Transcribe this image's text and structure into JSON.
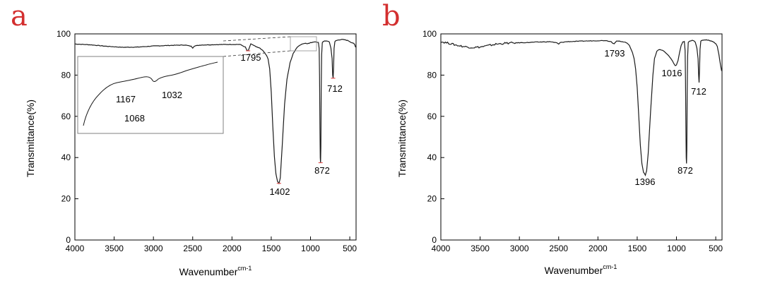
{
  "colors": {
    "panel_letter": "#d32f2f",
    "line": "#1a1a1a",
    "marker": "#e05050",
    "inset_border": "#808080"
  },
  "chart_data": [
    {
      "type": "line",
      "panel_label": "a",
      "xlabel": "Wavenumber",
      "xlabel_superscript": "cm-1",
      "ylabel": "Transmittance(%)",
      "xlim": [
        4000,
        420
      ],
      "ylim": [
        0,
        100
      ],
      "xticks": [
        4000,
        3500,
        3000,
        2500,
        2000,
        1500,
        1000,
        500
      ],
      "yticks": [
        0,
        20,
        40,
        60,
        80,
        100
      ],
      "grid": false,
      "series": [
        {
          "x": [
            4000,
            3800,
            3600,
            3400,
            3200,
            3000,
            2800,
            2600,
            2520,
            2500,
            2480,
            2400,
            2200,
            2000,
            1900,
            1830,
            1810,
            1795,
            1780,
            1760,
            1720,
            1680,
            1640,
            1600,
            1560,
            1540,
            1520,
            1500,
            1480,
            1460,
            1440,
            1420,
            1402,
            1385,
            1360,
            1330,
            1300,
            1260,
            1220,
            1180,
            1140,
            1100,
            1060,
            1040,
            1020,
            1000,
            960,
            930,
            900,
            890,
            885,
            880,
            876,
            872,
            868,
            864,
            858,
            850,
            840,
            820,
            800,
            780,
            760,
            740,
            725,
            718,
            712,
            706,
            700,
            690,
            680,
            660,
            640,
            620,
            600,
            580,
            560,
            540,
            520,
            500,
            480,
            460,
            440,
            425
          ],
          "y": [
            95.1,
            94.7,
            94.0,
            93.5,
            93.6,
            94.1,
            94.4,
            94.6,
            94.0,
            93.2,
            94.1,
            94.6,
            94.8,
            94.9,
            94.9,
            93.6,
            92.0,
            91.8,
            93.0,
            95.2,
            94.3,
            93.5,
            93.0,
            91.6,
            89.5,
            87.8,
            83.0,
            72.0,
            55.0,
            40.5,
            32.0,
            28.5,
            27.5,
            30.0,
            46.0,
            66.0,
            78.0,
            86.0,
            90.5,
            93.0,
            94.5,
            95.2,
            95.5,
            95.3,
            95.4,
            95.7,
            96.1,
            96.2,
            95.8,
            93.0,
            80.0,
            55.0,
            40.0,
            37.5,
            45.0,
            72.0,
            90.0,
            95.8,
            96.2,
            96.5,
            96.6,
            96.5,
            96.0,
            93.0,
            88.0,
            80.0,
            78.5,
            84.0,
            93.0,
            96.2,
            96.6,
            96.9,
            97.1,
            97.2,
            97.3,
            97.2,
            97.1,
            96.9,
            96.7,
            96.3,
            95.8,
            95.5,
            95.0,
            93.5
          ]
        }
      ],
      "annotations": [
        {
          "text": "1795",
          "x": 1795,
          "y": 91.8
        },
        {
          "text": "1402",
          "x": 1402,
          "y": 27.5
        },
        {
          "text": "872",
          "x": 872,
          "y": 37.5
        },
        {
          "text": "712",
          "x": 712,
          "y": 78.5
        }
      ],
      "inset": {
        "labels": [
          "1167",
          "1032",
          "1068"
        ]
      }
    },
    {
      "type": "line",
      "panel_label": "b",
      "xlabel": "Wavenumber",
      "xlabel_superscript": "cm-1",
      "ylabel": "Transmittance(%)",
      "xlim": [
        4000,
        420
      ],
      "ylim": [
        0,
        100
      ],
      "xticks": [
        4000,
        3500,
        3000,
        2500,
        2000,
        1500,
        1000,
        500
      ],
      "yticks": [
        0,
        20,
        40,
        60,
        80,
        100
      ],
      "grid": false,
      "series": [
        {
          "x": [
            4000,
            3900,
            3800,
            3700,
            3600,
            3500,
            3400,
            3300,
            3200,
            3100,
            3000,
            2900,
            2800,
            2700,
            2600,
            2520,
            2500,
            2480,
            2400,
            2200,
            2000,
            1900,
            1830,
            1810,
            1793,
            1780,
            1760,
            1720,
            1680,
            1640,
            1600,
            1560,
            1540,
            1520,
            1500,
            1480,
            1460,
            1440,
            1420,
            1396,
            1380,
            1360,
            1330,
            1300,
            1280,
            1250,
            1220,
            1180,
            1140,
            1100,
            1060,
            1040,
            1016,
            1000,
            980,
            960,
            940,
            920,
            900,
            890,
            885,
            880,
            876,
            872,
            868,
            864,
            858,
            850,
            840,
            820,
            800,
            780,
            760,
            740,
            725,
            718,
            712,
            706,
            700,
            690,
            680,
            660,
            640,
            620,
            600,
            580,
            560,
            540,
            520,
            500,
            480,
            460,
            440,
            425
          ],
          "y": [
            96.2,
            95.5,
            94.5,
            93.8,
            93.4,
            93.6,
            94.3,
            95.0,
            95.4,
            95.6,
            95.7,
            95.8,
            96.0,
            96.1,
            96.2,
            95.6,
            95.0,
            95.8,
            96.2,
            96.5,
            96.7,
            96.8,
            96.2,
            95.5,
            95.3,
            95.8,
            96.5,
            96.4,
            96.2,
            95.8,
            94.5,
            91.0,
            88.0,
            83.0,
            74.0,
            60.0,
            46.0,
            37.0,
            33.0,
            31.5,
            33.5,
            42.0,
            62.0,
            80.0,
            88.0,
            91.5,
            92.5,
            92.0,
            91.0,
            89.5,
            87.5,
            86.0,
            84.5,
            85.0,
            87.0,
            91.0,
            94.5,
            96.0,
            96.3,
            92.0,
            78.0,
            55.0,
            40.0,
            37.0,
            44.0,
            70.0,
            89.0,
            95.8,
            96.3,
            96.6,
            96.8,
            96.6,
            96.0,
            93.0,
            88.0,
            80.0,
            76.5,
            83.0,
            92.5,
            96.4,
            96.7,
            97.0,
            97.1,
            97.1,
            97.0,
            96.8,
            96.6,
            96.3,
            95.9,
            95.2,
            94.0,
            90.0,
            85.0,
            82.0
          ],
          "noise_until": 3050
        }
      ],
      "annotations": [
        {
          "text": "1793",
          "x": 1793,
          "y": 95.3
        },
        {
          "text": "1396",
          "x": 1396,
          "y": 31.5
        },
        {
          "text": "1016",
          "x": 1016,
          "y": 84.5
        },
        {
          "text": "872",
          "x": 872,
          "y": 37.0
        },
        {
          "text": "712",
          "x": 712,
          "y": 76.5
        }
      ]
    }
  ]
}
